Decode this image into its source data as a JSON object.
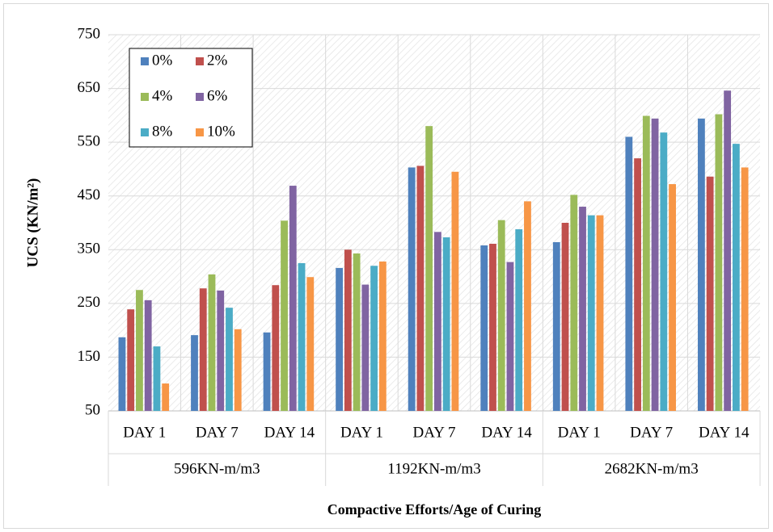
{
  "chart_data": {
    "type": "bar",
    "y_label": "UCS (KN/m²)",
    "x_label": "Compactive Efforts/Age of Curing",
    "categories": [
      "DAY 1",
      "DAY 7",
      "DAY 14",
      "DAY 1",
      "DAY 7",
      "DAY 14",
      "DAY 1",
      "DAY 7",
      "DAY 14"
    ],
    "groups": [
      "596KN-m/m3",
      "1192KN-m/m3",
      "2682KN-m/m3"
    ],
    "series": [
      {
        "name": "0%",
        "color": "#4f81bd",
        "values": [
          187,
          191,
          196,
          316,
          503,
          358,
          364,
          560,
          594
        ]
      },
      {
        "name": "2%",
        "color": "#c0504d",
        "values": [
          239,
          278,
          284,
          350,
          506,
          361,
          400,
          520,
          486
        ]
      },
      {
        "name": "4%",
        "color": "#9bbb59",
        "values": [
          275,
          304,
          404,
          343,
          580,
          405,
          452,
          599,
          602
        ]
      },
      {
        "name": "6%",
        "color": "#8064a2",
        "values": [
          256,
          274,
          469,
          285,
          383,
          327,
          430,
          594,
          646
        ]
      },
      {
        "name": "8%",
        "color": "#4bacc6",
        "values": [
          170,
          242,
          325,
          320,
          373,
          388,
          414,
          568,
          547
        ]
      },
      {
        "name": "10%",
        "color": "#f79646",
        "values": [
          101,
          202,
          299,
          328,
          495,
          440,
          414,
          472,
          503
        ]
      }
    ],
    "ylim": [
      50,
      750
    ],
    "yticks": [
      50,
      150,
      250,
      350,
      450,
      550,
      650,
      750
    ],
    "grid": true
  }
}
